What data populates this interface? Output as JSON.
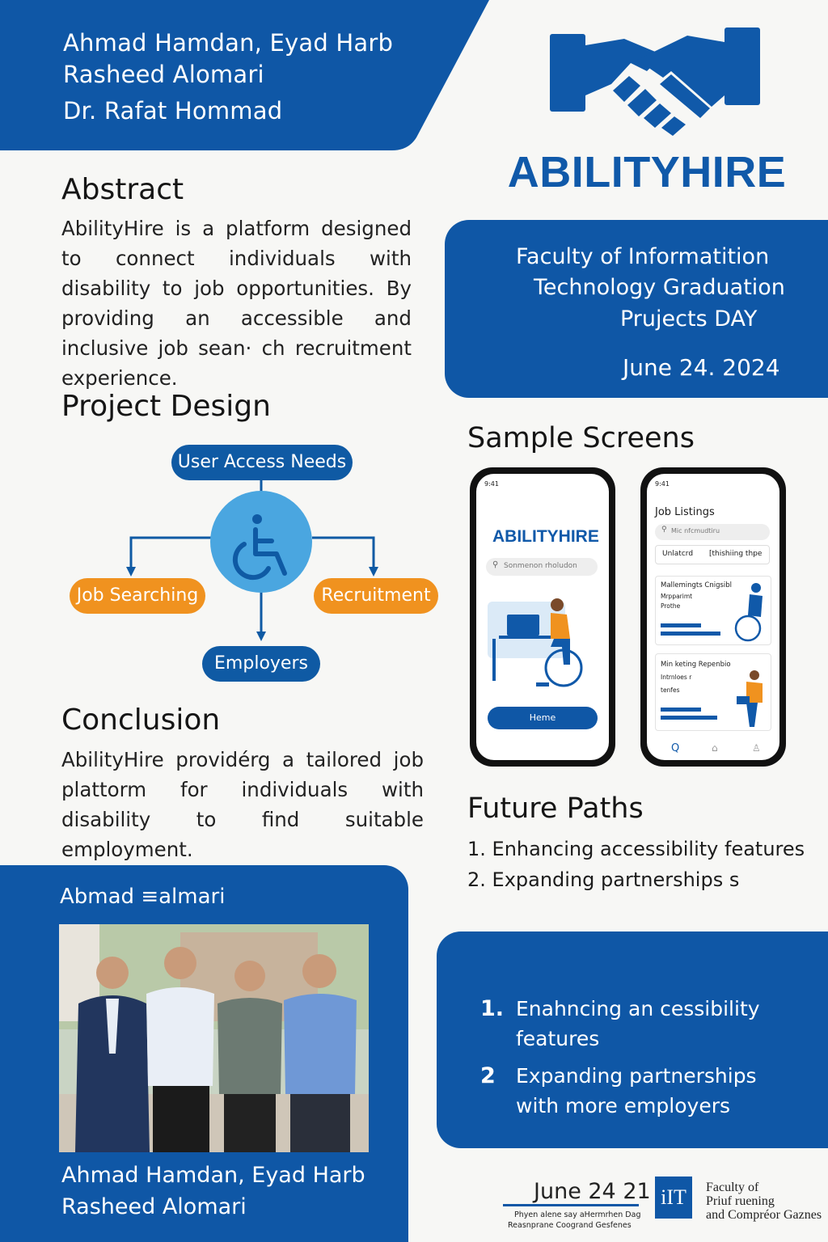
{
  "authors": {
    "line1": "Ahmad Hamdan, Eyad Harb",
    "line2": "Rasheed Alomari",
    "supervisor": "Dr. Rafat Hommad"
  },
  "logo": {
    "text": "ABILITYHIRE",
    "icon": "handshake-icon"
  },
  "faculty": {
    "line1": "Faculty of Informatition",
    "line2": "Technology Graduation",
    "line3": "Prujects DAY",
    "date": "June 24. 2024"
  },
  "abstract": {
    "heading": "Abstract",
    "text": "AbilityHire is a platform designed to connect individuals with disability to job opportunities. By providing an accessible and inclusive job sean· ch recruitment experience."
  },
  "design": {
    "heading": "Project Design",
    "top": "User Access Needs",
    "left": "Job Searching",
    "right": "Recruitment",
    "bottom": "Employers",
    "center_icon": "wheelchair-icon"
  },
  "conclusion": {
    "heading": "Conclusion",
    "text": "AbilityHire providérg a tailored job plattorm for individuals with disability to find suitable employment."
  },
  "sample_screens": {
    "heading": "Sample Screens",
    "phone1": {
      "logo": "ABILITYHIRE",
      "search_placeholder": "Sonmenon rholudon",
      "button": "Heme"
    },
    "phone2": {
      "title": "Job Listings",
      "search_placeholder": "Mic nfcmudtiru",
      "filter1": "Unlatcrd",
      "filter2": "[thishiing thpe",
      "card1_title": "Mallemingts Cnigsibl",
      "card1_line1": "Mrpparimt",
      "card1_line2": "Prothe",
      "card2_title": "Min keting Repenbio",
      "card2_line1": "Intrnloes r",
      "card2_line2": "tenfes"
    }
  },
  "future_paths": {
    "heading": "Future Paths",
    "item1": "1. Enhancing accessibility features",
    "item2": "2. Expanding partnerships s"
  },
  "team": {
    "name": "Abmad ≡almari",
    "caption_line1": "Ahmad Hamdan, Eyad Harb",
    "caption_line2": "Rasheed Alomari"
  },
  "future_box": {
    "num1": "1.",
    "item1_line1": "Enahncing an cessibility",
    "item1_line2": "features",
    "num2": "2",
    "item2_line1": "Expanding partnerships",
    "item2_line2": "with more employers"
  },
  "footer": {
    "date": "June 24 21",
    "small1": "Phyen alene say aHermrhen Dag",
    "small2": "Reasnprane Coogrand Gesfenes",
    "logo": "iIT",
    "fac1": "Faculty of",
    "fac2": "Priuf ruening",
    "fac3": "and Compréor Gaznes"
  },
  "colors": {
    "primary": "#0f57a6",
    "accent": "#f0921f",
    "light_blue": "#4aa6e0"
  }
}
